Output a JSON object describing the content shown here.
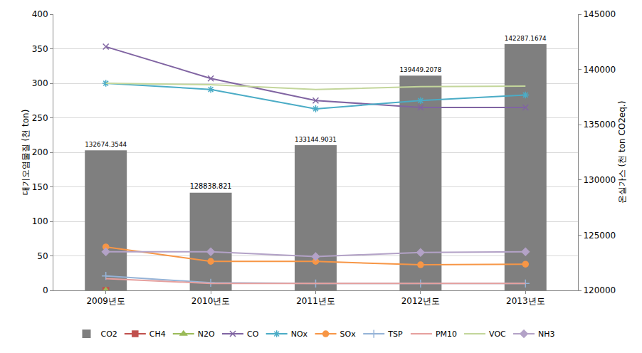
{
  "chart_data": {
    "type": "bar",
    "categories": [
      "2009년도",
      "2010년도",
      "2011년도",
      "2012년도",
      "2013년도"
    ],
    "y_label": "대기오염물질 (천 ton)",
    "y2_label": "온실가스 (천 ton CO2eq.)",
    "ylim": [
      0,
      400
    ],
    "yticks": [
      0,
      50,
      100,
      150,
      200,
      250,
      300,
      350,
      400
    ],
    "y2lim": [
      120000,
      145000
    ],
    "y2ticks": [
      120000,
      125000,
      130000,
      135000,
      140000,
      145000
    ],
    "grid": true,
    "legend": "bottom",
    "series": [
      {
        "name": "CO2",
        "type": "bar",
        "axis": "y2",
        "color": "#7f7f7f",
        "data_labels": true,
        "values": [
          132674.3544,
          128838.821,
          133144.9031,
          139449.2078,
          142287.1674
        ]
      },
      {
        "name": "CH4",
        "type": "line",
        "color": "#c0504d",
        "marker": "square",
        "values": [
          0,
          null,
          null,
          null,
          null
        ]
      },
      {
        "name": "N2O",
        "type": "line",
        "color": "#9bbb59",
        "marker": "triangle",
        "values": [
          0,
          null,
          null,
          null,
          null
        ]
      },
      {
        "name": "CO",
        "type": "line",
        "color": "#8064a2",
        "marker": "x",
        "values": [
          353,
          307,
          275,
          265,
          265
        ]
      },
      {
        "name": "NOx",
        "type": "line",
        "color": "#4bacc6",
        "marker": "asterisk",
        "values": [
          300,
          291,
          263,
          275,
          283
        ]
      },
      {
        "name": "SOx",
        "type": "line",
        "color": "#f79646",
        "marker": "circle",
        "values": [
          63,
          42,
          42,
          37,
          38
        ]
      },
      {
        "name": "TSP",
        "type": "line",
        "color": "#95b3d7",
        "marker": "plus",
        "values": [
          21,
          11,
          10,
          10,
          10
        ]
      },
      {
        "name": "PM10",
        "type": "line",
        "color": "#e6a09e",
        "marker": "none",
        "values": [
          17,
          10,
          10,
          10,
          10
        ]
      },
      {
        "name": "VOC",
        "type": "line",
        "color": "#c3d69b",
        "marker": "none",
        "values": [
          300,
          298,
          291,
          295,
          296
        ]
      },
      {
        "name": "NH3",
        "type": "line",
        "color": "#b3a2c7",
        "marker": "diamond",
        "values": [
          56,
          56,
          49,
          55,
          56
        ]
      }
    ]
  }
}
